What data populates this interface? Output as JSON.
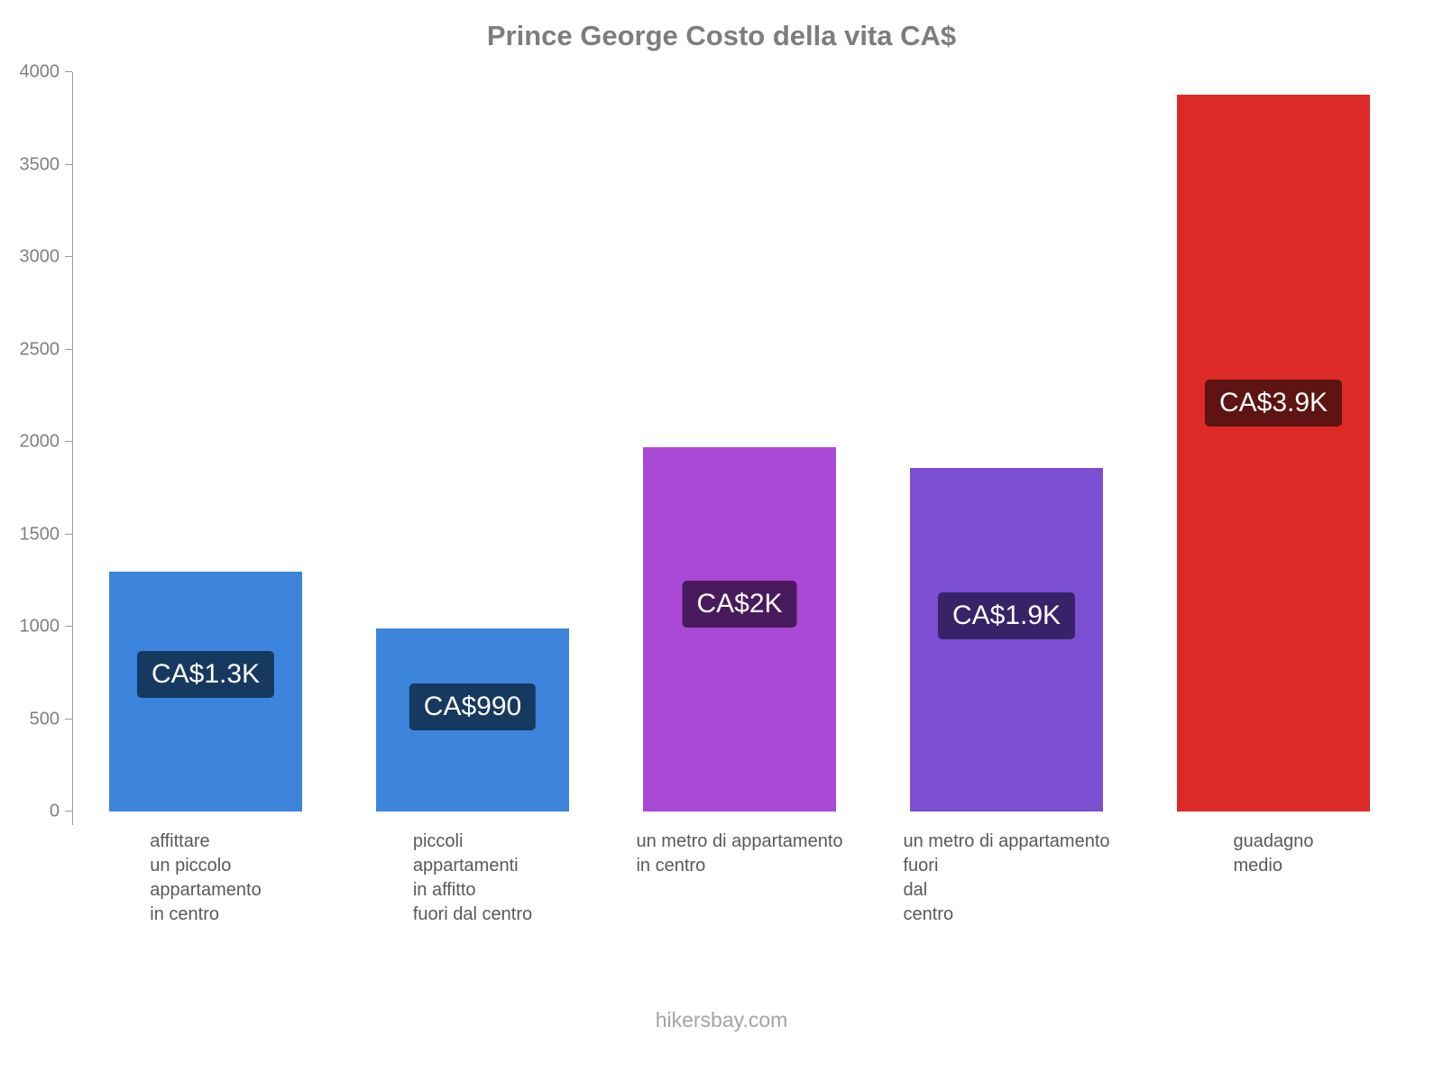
{
  "title": "Prince George Costo della vita CA$",
  "footer": "hikersbay.com",
  "chart_data": {
    "type": "bar",
    "title": "Prince George Costo della vita CA$",
    "categories": [
      [
        "affittare",
        "un piccolo",
        "appartamento",
        "in centro"
      ],
      [
        "piccoli",
        "appartamenti",
        "in affitto",
        "fuori dal centro"
      ],
      [
        "un metro di appartamento",
        "in centro"
      ],
      [
        "un metro di appartamento",
        "fuori",
        "dal",
        "centro"
      ],
      [
        "guadagno",
        "medio"
      ]
    ],
    "values": [
      1300,
      990,
      1970,
      1860,
      3880
    ],
    "value_labels": [
      "CA$1.3K",
      "CA$990",
      "CA$2K",
      "CA$1.9K",
      "CA$3.9K"
    ],
    "bar_colors": [
      "#3d85dc",
      "#3d85dc",
      "#aa49d5",
      "#7b4ed2",
      "#de2a26"
    ],
    "value_label_backgrounds": [
      "#16395f",
      "#16395f",
      "#4a1a5e",
      "#392368",
      "#5d1412"
    ],
    "value_label_text_color": "#ffffff",
    "xlabel": "",
    "ylabel": "",
    "ylim": [
      0,
      4000
    ],
    "yticks": [
      0,
      500,
      1000,
      1500,
      2000,
      2500,
      3000,
      3500,
      4000
    ],
    "grid": false,
    "legend": false
  }
}
